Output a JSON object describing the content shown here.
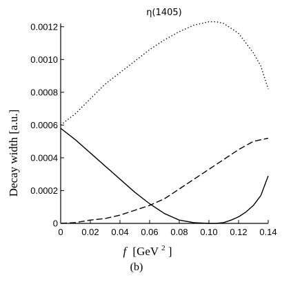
{
  "chart_data": {
    "type": "line",
    "title": "η(1405)",
    "xlabel_italic": "f",
    "xlabel_unit": "[GeV",
    "xlabel_exp": "2",
    "xlabel_close": "]",
    "ylabel": "Decay width [a.u.]",
    "panel_label": "(b)",
    "xlim": [
      0,
      0.14
    ],
    "ylim": [
      0,
      0.00122
    ],
    "xticks": [
      0,
      0.02,
      0.04,
      0.06,
      0.08,
      0.1,
      0.12,
      0.14
    ],
    "xtick_labels": [
      "0",
      "0.02",
      "0.04",
      "0.06",
      "0.08",
      "0.10",
      "0.12",
      "0.14"
    ],
    "yticks": [
      0,
      0.0002,
      0.0004,
      0.0006,
      0.0008,
      0.001,
      0.0012
    ],
    "ytick_labels": [
      "0",
      "0.0002",
      "0.0004",
      "0.0006",
      "0.0008",
      "0.0010",
      "0.0012"
    ],
    "grid": false,
    "series": [
      {
        "style": "solid",
        "x": [
          0,
          0.01,
          0.02,
          0.03,
          0.04,
          0.05,
          0.06,
          0.07,
          0.08,
          0.09,
          0.1,
          0.105,
          0.11,
          0.115,
          0.12,
          0.125,
          0.13,
          0.135,
          0.14
        ],
        "y": [
          0.00058,
          0.00051,
          0.00043,
          0.00035,
          0.00027,
          0.00019,
          0.00012,
          6e-05,
          2e-05,
          4e-06,
          0.0,
          0.0,
          5e-06,
          2e-05,
          4e-05,
          7e-05,
          0.00011,
          0.00017,
          0.00029
        ]
      },
      {
        "style": "dashed",
        "x": [
          0,
          0.01,
          0.02,
          0.03,
          0.04,
          0.05,
          0.06,
          0.07,
          0.08,
          0.09,
          0.1,
          0.11,
          0.12,
          0.13,
          0.14
        ],
        "y": [
          0,
          5e-06,
          2e-05,
          3e-05,
          5e-05,
          8e-05,
          0.00011,
          0.00015,
          0.00021,
          0.00027,
          0.00033,
          0.00039,
          0.00045,
          0.0005,
          0.00052
        ]
      },
      {
        "style": "dotted",
        "x": [
          0,
          0.01,
          0.02,
          0.03,
          0.04,
          0.05,
          0.06,
          0.07,
          0.08,
          0.09,
          0.1,
          0.105,
          0.11,
          0.12,
          0.13,
          0.135,
          0.14
        ],
        "y": [
          0.0006,
          0.00067,
          0.00076,
          0.00085,
          0.00092,
          0.00099,
          0.00106,
          0.00112,
          0.00117,
          0.00121,
          0.00123,
          0.00123,
          0.00122,
          0.00116,
          0.00104,
          0.00096,
          0.00082
        ]
      }
    ]
  }
}
